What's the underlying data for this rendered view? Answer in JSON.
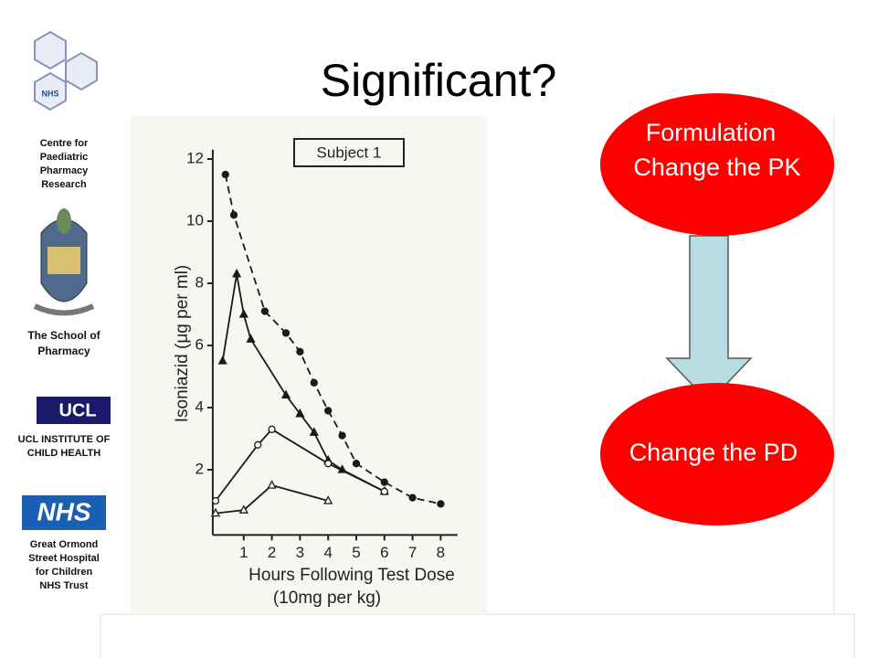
{
  "title": "Significant?",
  "sidebar": {
    "logo_texts": [
      "UCL",
      "NHS"
    ],
    "labels": [
      [
        "Centre for",
        "Paediatric",
        "Pharmacy",
        "Research"
      ],
      [
        "The School of",
        "Pharmacy"
      ],
      [
        "UCL INSTITUTE OF",
        "CHILD HEALTH"
      ],
      [
        "Great Ormond",
        "Street Hospital",
        "for Children",
        "NHS Trust"
      ]
    ]
  },
  "diagram": {
    "top": [
      "Formulation",
      "Change the PK"
    ],
    "bottom": [
      "Change the PD"
    ]
  },
  "chart_data": {
    "type": "scatter",
    "title": "Subject 1",
    "x_label": [
      "Hours Following Test Dose",
      "(10mg per kg)"
    ],
    "y_label": "Isoniazid (μg per ml)",
    "xlim": [
      -0.1,
      8.6
    ],
    "ylim": [
      -0.1,
      12.3
    ],
    "xticks": [
      1,
      2,
      3,
      4,
      5,
      6,
      7,
      8
    ],
    "yticks": [
      2,
      4,
      6,
      8,
      10,
      12
    ],
    "series": [
      {
        "marker": "filled-circle",
        "dashed": true,
        "color": "#1a1a1a",
        "x": [
          0.35,
          0.65,
          1.75,
          2.5,
          3,
          3.5,
          4,
          4.5,
          5,
          6,
          7,
          8
        ],
        "values": [
          11.5,
          10.2,
          7.1,
          6.4,
          5.8,
          4.8,
          3.9,
          3.1,
          2.2,
          1.6,
          1.1,
          0.9
        ]
      },
      {
        "marker": "filled-triangle",
        "dashed": false,
        "color": "#1a1a1a",
        "x": [
          0.25,
          0.75,
          1,
          1.25,
          2.5,
          3,
          3.5,
          4,
          4.5,
          6
        ],
        "values": [
          5.5,
          8.3,
          7.0,
          6.2,
          4.4,
          3.8,
          3.2,
          2.3,
          2.0,
          1.3
        ]
      },
      {
        "marker": "open-circle",
        "dashed": false,
        "color": "#1a1a1a",
        "x": [
          0,
          1.5,
          2,
          4,
          6
        ],
        "values": [
          1.0,
          2.8,
          3.3,
          2.2,
          1.3
        ]
      },
      {
        "marker": "open-triangle",
        "dashed": false,
        "color": "#1a1a1a",
        "x": [
          0,
          1,
          2,
          4
        ],
        "values": [
          0.6,
          0.7,
          1.5,
          1.0
        ]
      }
    ]
  }
}
